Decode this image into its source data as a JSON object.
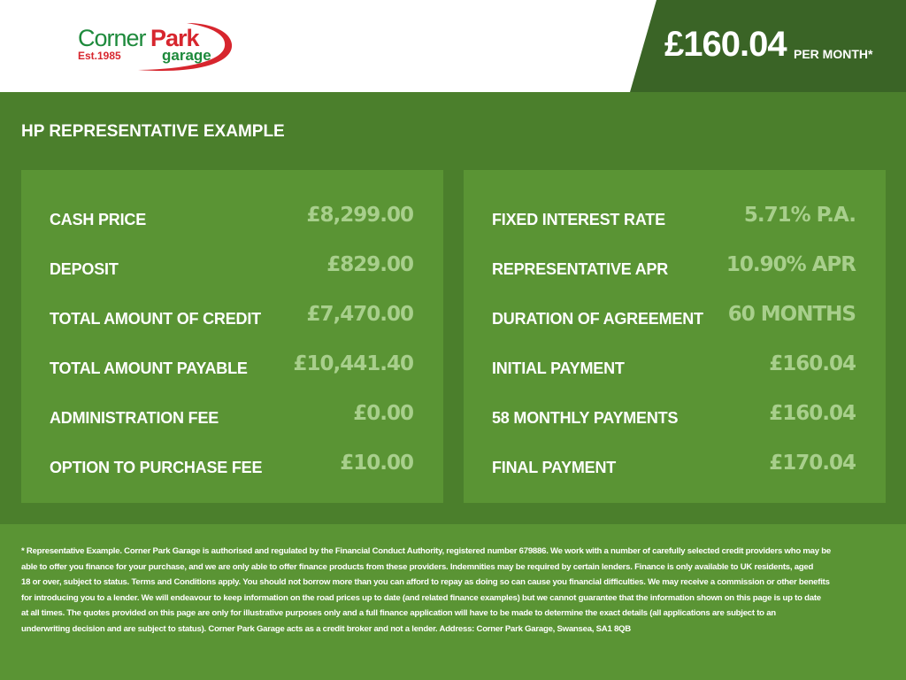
{
  "brand": {
    "name_part1": "Corner",
    "name_part2": "Park",
    "sub": "garage",
    "est": "Est.1985",
    "colors": {
      "green": "#1e8a3c",
      "red": "#d7262e"
    }
  },
  "header": {
    "price": "£160.04",
    "per_month": "PER MONTH*"
  },
  "main": {
    "title": "HP REPRESENTATIVE EXAMPLE",
    "left": [
      {
        "label": "CASH PRICE",
        "value": "£8,299.00"
      },
      {
        "label": "DEPOSIT",
        "value": "£829.00"
      },
      {
        "label": "TOTAL AMOUNT OF CREDIT",
        "value": "£7,470.00"
      },
      {
        "label": "TOTAL AMOUNT PAYABLE",
        "value": "£10,441.40"
      },
      {
        "label": "ADMINISTRATION FEE",
        "value": "£0.00"
      },
      {
        "label": "OPTION TO PURCHASE FEE",
        "value": "£10.00"
      }
    ],
    "right": [
      {
        "label": "FIXED INTEREST RATE",
        "value": "5.71% P.A."
      },
      {
        "label": "REPRESENTATIVE APR",
        "value": "10.90% APR"
      },
      {
        "label": "DURATION OF AGREEMENT",
        "value": "60 MONTHS"
      },
      {
        "label": "INITIAL PAYMENT",
        "value": "£160.04"
      },
      {
        "label": "58 MONTHLY PAYMENTS",
        "value": "£160.04"
      },
      {
        "label": "FINAL PAYMENT",
        "value": "£170.04"
      }
    ]
  },
  "footer": {
    "lines": [
      "* Representative Example. Corner Park Garage is authorised and regulated by the Financial Conduct Authority, registered number 679886. We work with a number of carefully selected credit providers who may be",
      "able to offer you finance for your purchase, and we are only able to offer finance products from these providers. Indemnities may be required by certain lenders. Finance is only available to UK residents, aged",
      "18 or over, subject to status. Terms and Conditions apply. You should not borrow more than you can afford to repay as doing so can cause you financial difficulties. We may receive a commission or other benefits",
      "for introducing you to a lender. We will endeavour to keep information on the road prices up to date (and related finance examples) but we cannot guarantee that the information shown on this page is up to date",
      "at all times. The quotes provided on this page are only for illustrative purposes only and a full finance application will have to be made to determine the exact details (all applications are subject to an",
      "underwriting decision and are subject to status). Corner Park Garage acts as a credit broker and not a lender. Address: Corner Park Garage, Swansea, SA1 8QB"
    ]
  }
}
